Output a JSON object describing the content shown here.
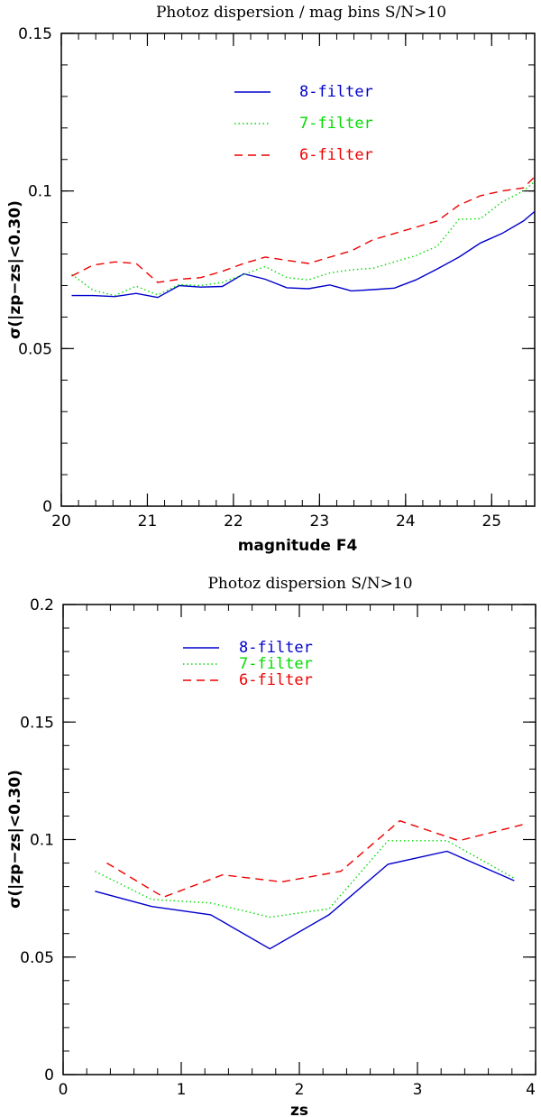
{
  "chart_data": [
    {
      "type": "line",
      "title": "Photoz dispersion / mag bins   S/N>10",
      "xlabel": "magnitude F4",
      "ylabel": "σ(|zp−zs|<0.30)",
      "xlim": [
        20,
        25.5
      ],
      "ylim": [
        0,
        0.15
      ],
      "xticks": [
        20,
        21,
        22,
        23,
        24,
        25
      ],
      "xtick_labels": [
        "20",
        "21",
        "22",
        "23",
        "24",
        "25"
      ],
      "yticks": [
        0,
        0.05,
        0.1,
        0.15
      ],
      "ytick_labels": [
        "0",
        "0.05",
        "0.1",
        "0.15"
      ],
      "series": [
        {
          "name": "8-filter",
          "color": "#0000cc",
          "dash": "solid",
          "x": [
            20.12,
            20.37,
            20.62,
            20.87,
            21.12,
            21.37,
            21.62,
            21.87,
            22.12,
            22.37,
            22.62,
            22.87,
            23.12,
            23.37,
            23.62,
            23.87,
            24.12,
            24.37,
            24.62,
            24.87,
            25.12,
            25.37,
            25.5
          ],
          "values": [
            0.0668,
            0.0668,
            0.0665,
            0.0675,
            0.0662,
            0.07,
            0.0695,
            0.0697,
            0.0737,
            0.072,
            0.0693,
            0.069,
            0.0702,
            0.0683,
            0.0687,
            0.0692,
            0.0718,
            0.0753,
            0.079,
            0.0835,
            0.0865,
            0.0905,
            0.0935
          ]
        },
        {
          "name": "7-filter",
          "color": "#00dd00",
          "dash": "dotted",
          "x": [
            20.12,
            20.37,
            20.62,
            20.87,
            21.12,
            21.37,
            21.62,
            21.87,
            22.12,
            22.37,
            22.62,
            22.87,
            23.12,
            23.37,
            23.62,
            23.87,
            24.12,
            24.37,
            24.62,
            24.87,
            25.12,
            25.37,
            25.5
          ],
          "values": [
            0.0735,
            0.0685,
            0.0668,
            0.0698,
            0.067,
            0.0703,
            0.07,
            0.071,
            0.0735,
            0.076,
            0.0725,
            0.0718,
            0.074,
            0.075,
            0.0755,
            0.0775,
            0.0795,
            0.0825,
            0.091,
            0.0912,
            0.0965,
            0.1,
            0.103
          ]
        },
        {
          "name": "6-filter",
          "color": "#ee0000",
          "dash": "dashed",
          "x": [
            20.12,
            20.37,
            20.62,
            20.87,
            21.12,
            21.37,
            21.62,
            21.87,
            22.12,
            22.37,
            22.62,
            22.87,
            23.12,
            23.37,
            23.62,
            23.87,
            24.12,
            24.37,
            24.62,
            24.87,
            25.12,
            25.37,
            25.5
          ],
          "values": [
            0.073,
            0.0765,
            0.0775,
            0.077,
            0.071,
            0.072,
            0.0725,
            0.0745,
            0.077,
            0.079,
            0.078,
            0.077,
            0.079,
            0.081,
            0.0845,
            0.0865,
            0.0885,
            0.0905,
            0.0955,
            0.0985,
            0.1,
            0.101,
            0.1045
          ]
        }
      ],
      "legend": "top-center"
    },
    {
      "type": "line",
      "title": "Photoz dispersion    S/N>10",
      "xlabel": "zs",
      "ylabel": "σ(|zp−zs|<0.30)",
      "xlim": [
        0,
        4
      ],
      "ylim": [
        0,
        0.2
      ],
      "xticks": [
        0,
        1,
        2,
        3,
        4
      ],
      "xtick_labels": [
        "0",
        "1",
        "2",
        "3",
        "4"
      ],
      "yticks": [
        0,
        0.05,
        0.1,
        0.15,
        0.2
      ],
      "ytick_labels": [
        "0",
        "0.05",
        "0.1",
        "0.15",
        "0.2"
      ],
      "series": [
        {
          "name": "8-filter",
          "color": "#0000cc",
          "dash": "solid",
          "x": [
            0.27,
            0.75,
            1.25,
            1.75,
            2.25,
            2.75,
            3.25,
            3.82
          ],
          "values": [
            0.078,
            0.0715,
            0.068,
            0.0535,
            0.068,
            0.0895,
            0.095,
            0.0825
          ]
        },
        {
          "name": "7-filter",
          "color": "#00dd00",
          "dash": "dotted",
          "x": [
            0.27,
            0.75,
            1.25,
            1.75,
            2.25,
            2.75,
            3.25,
            3.82
          ],
          "values": [
            0.0865,
            0.0745,
            0.073,
            0.067,
            0.0705,
            0.0995,
            0.0995,
            0.0835
          ]
        },
        {
          "name": "6-filter",
          "color": "#ee0000",
          "dash": "dashed",
          "x": [
            0.37,
            0.85,
            1.35,
            1.85,
            2.35,
            2.85,
            3.35,
            3.9
          ],
          "values": [
            0.09,
            0.0755,
            0.085,
            0.082,
            0.0865,
            0.108,
            0.0995,
            0.1065
          ]
        }
      ],
      "legend": "top-left"
    }
  ]
}
